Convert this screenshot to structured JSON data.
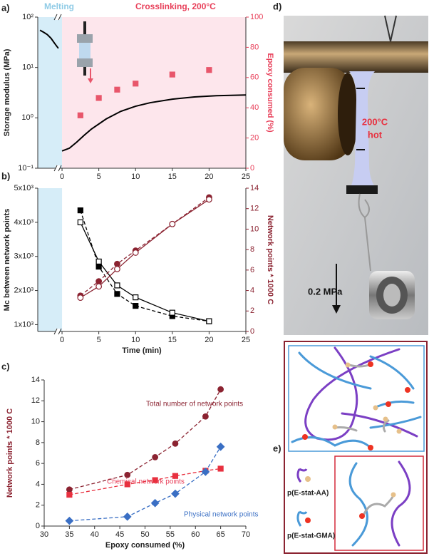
{
  "chart_data": [
    {
      "type": "line",
      "label": "a)",
      "annotations": [
        {
          "text": "Melting",
          "color": "#8fcbe6"
        },
        {
          "text": "Crosslinking, 200°C",
          "color": "#e8405a"
        }
      ],
      "bands": [
        "#d6edf8",
        "#fde6ec"
      ],
      "ylabel": "Storage modulus (MPa)",
      "y2label": "Epoxy consumed (%)",
      "y2color": "#e8405a",
      "ylog": true,
      "xlim": [
        -3.3,
        25
      ],
      "xticks": [
        0,
        5,
        10,
        15,
        20,
        25
      ],
      "ylim": [
        0.1,
        100
      ],
      "yticks": [
        {
          "value": 0.1,
          "label": "10⁻¹"
        },
        {
          "value": 1,
          "label": "10⁰"
        },
        {
          "value": 10,
          "label": "10¹"
        },
        {
          "value": 100,
          "label": "10²"
        }
      ],
      "y2lim": [
        0,
        100
      ],
      "y2ticks": [
        0,
        20,
        40,
        60,
        80,
        100
      ],
      "series": [
        {
          "color": "#000000",
          "line": "solid",
          "x": [
            -3,
            -2.5,
            -2,
            -1.5,
            -1,
            -0.5
          ],
          "values": [
            55,
            50,
            45,
            38,
            30,
            24
          ]
        },
        {
          "color": "#000000",
          "line": "solid",
          "x": [
            0,
            1,
            2,
            3,
            4,
            6,
            8,
            10,
            12,
            15,
            18,
            21,
            25
          ],
          "values": [
            0.22,
            0.25,
            0.33,
            0.45,
            0.6,
            0.95,
            1.35,
            1.7,
            2.0,
            2.35,
            2.6,
            2.75,
            2.85
          ]
        },
        {
          "color": "#e8566b",
          "marker": "square",
          "filled": true,
          "axis": "y2",
          "x": [
            2.5,
            5,
            7.5,
            10,
            15,
            20
          ],
          "values": [
            35,
            46.5,
            52,
            56,
            62,
            65
          ]
        }
      ]
    },
    {
      "type": "line",
      "label": "b)",
      "bands": [
        "#d6edf8"
      ],
      "ylabel": "Mc between network points",
      "y2label": "Network points * 1000 C",
      "y2color": "#8b2331",
      "xlabel": "Time (min)",
      "xlim": [
        -3.3,
        25
      ],
      "xticks": [
        0,
        5,
        10,
        15,
        20,
        25
      ],
      "ylim": [
        800,
        5000
      ],
      "yticks": [
        {
          "value": 1000,
          "label": "1x10³"
        },
        {
          "value": 2000,
          "label": "2x10³"
        },
        {
          "value": 3000,
          "label": "3x10³"
        },
        {
          "value": 4000,
          "label": "4x10³"
        },
        {
          "value": 5000,
          "label": "5x10³"
        }
      ],
      "y2lim": [
        0,
        14
      ],
      "y2ticks": [
        0,
        2,
        4,
        6,
        8,
        10,
        12,
        14
      ],
      "series": [
        {
          "color": "#000000",
          "marker": "square",
          "filled": true,
          "line": "dashed",
          "x": [
            2.5,
            5,
            7.5,
            10,
            15,
            20
          ],
          "values": [
            4350,
            2700,
            1900,
            1550,
            1250,
            1100
          ]
        },
        {
          "color": "#000000",
          "marker": "square",
          "filled": false,
          "line": "solid",
          "x": [
            2.5,
            5,
            7.5,
            10,
            15,
            20
          ],
          "values": [
            4000,
            2850,
            2150,
            1800,
            1350,
            1100
          ]
        },
        {
          "color": "#8b2331",
          "marker": "circle",
          "filled": true,
          "line": "dashed",
          "axis": "y2",
          "x": [
            2.5,
            5,
            7.5,
            10,
            15,
            20
          ],
          "values": [
            3.5,
            4.9,
            6.6,
            7.9,
            10.5,
            13.1
          ]
        },
        {
          "color": "#8b2331",
          "marker": "circle",
          "filled": false,
          "line": "solid",
          "axis": "y2",
          "x": [
            2.5,
            5,
            7.5,
            10,
            15,
            20
          ],
          "values": [
            3.3,
            4.4,
            6.1,
            7.7,
            10.5,
            12.9
          ]
        }
      ]
    },
    {
      "type": "scatter",
      "label": "c)",
      "ylabel": "Network points * 1000 C",
      "xlabel": "Epoxy consumed (%)",
      "ylabelcolor": "#8b2331",
      "xlim": [
        30,
        70
      ],
      "xticks": [
        30,
        35,
        40,
        45,
        50,
        55,
        60,
        65,
        70
      ],
      "ylim": [
        0,
        14
      ],
      "yticks": [
        0,
        2,
        4,
        6,
        8,
        10,
        12,
        14
      ],
      "annotations": [
        {
          "text": "Total number of network points",
          "color": "#8b2331"
        },
        {
          "text": "Chemical network points",
          "color": "#e8405a"
        },
        {
          "text": "Physical network points",
          "color": "#3a6fc4"
        }
      ],
      "series": [
        {
          "color": "#8b2331",
          "marker": "circle",
          "filled": true,
          "line": "dashed",
          "x": [
            35,
            46.5,
            52,
            56,
            62,
            65
          ],
          "values": [
            3.5,
            4.9,
            6.6,
            7.9,
            10.5,
            13.1
          ]
        },
        {
          "color": "#e8303f",
          "marker": "square",
          "filled": true,
          "line": "dashed",
          "x": [
            35,
            46.5,
            52,
            56,
            62,
            65
          ],
          "values": [
            3.0,
            4.0,
            4.4,
            4.8,
            5.3,
            5.5
          ]
        },
        {
          "color": "#3a6fc4",
          "marker": "diamond",
          "filled": true,
          "line": "dashed",
          "x": [
            35,
            46.5,
            52,
            56,
            62,
            65
          ],
          "values": [
            0.5,
            0.9,
            2.2,
            3.1,
            5.2,
            7.6
          ]
        }
      ]
    }
  ],
  "photo": {
    "label": "d)",
    "temperature": "200°C",
    "note": "hot",
    "stress": "0.2 MPa"
  },
  "diagram": {
    "label": "e)",
    "legend": [
      "p(E-stat-AA)",
      "p(E-stat-GMA)"
    ]
  }
}
